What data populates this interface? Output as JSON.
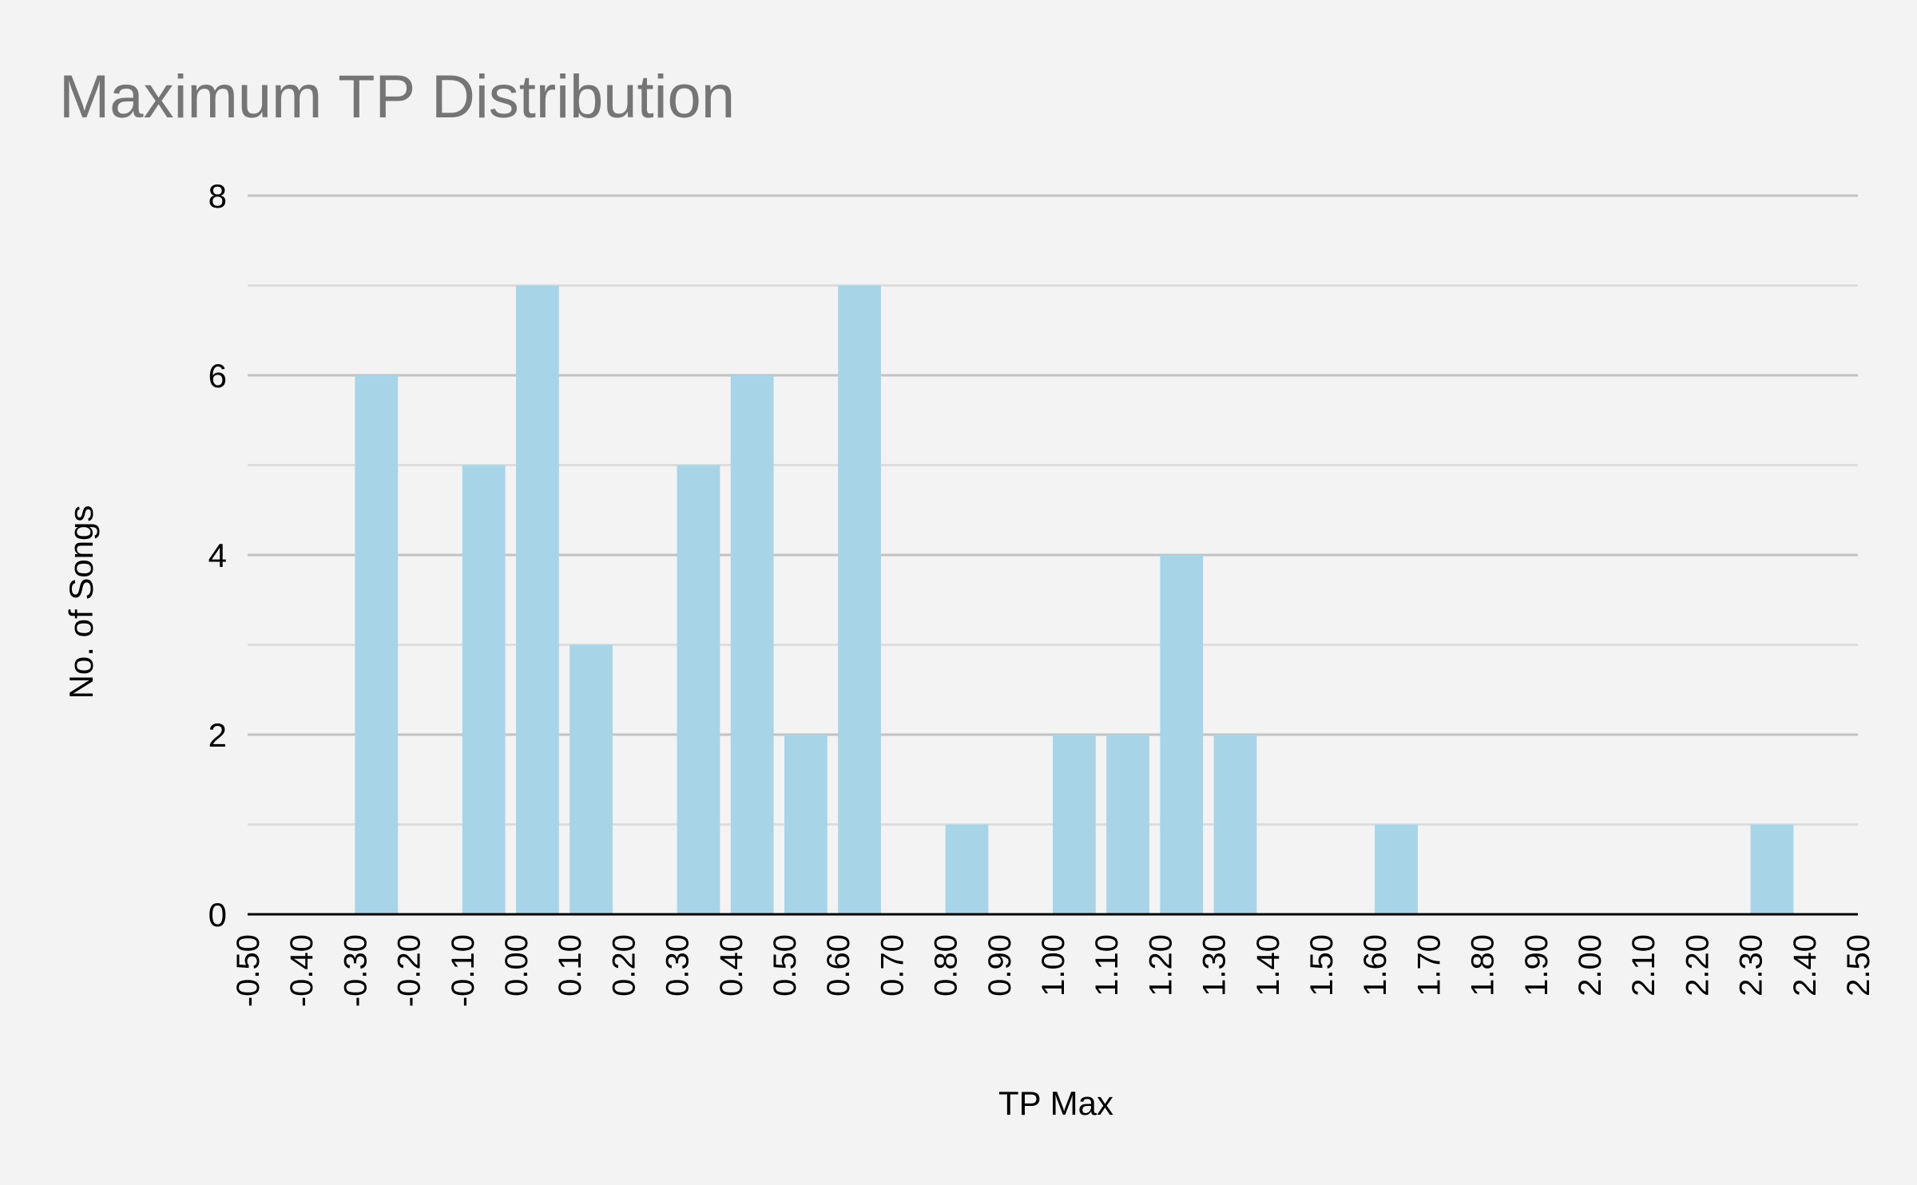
{
  "chart_data": {
    "type": "bar",
    "title": "Maximum TP Distribution",
    "xlabel": "TP Max",
    "ylabel": "No. of Songs",
    "ylim": [
      0,
      8
    ],
    "yticks": [
      0,
      2,
      4,
      6,
      8
    ],
    "xlim": [
      -0.5,
      2.5
    ],
    "xticks": [
      "-0.50",
      "-0.40",
      "-0.30",
      "-0.20",
      "-0.10",
      "0.00",
      "0.10",
      "0.20",
      "0.30",
      "0.40",
      "0.50",
      "0.60",
      "0.70",
      "0.80",
      "0.90",
      "1.00",
      "1.10",
      "1.20",
      "1.30",
      "1.40",
      "1.50",
      "1.60",
      "1.70",
      "1.80",
      "1.90",
      "2.00",
      "2.10",
      "2.20",
      "2.30",
      "2.40",
      "2.50"
    ],
    "grid": true,
    "color": "#a8d4e8",
    "bars": [
      {
        "x": -0.26,
        "value": 6
      },
      {
        "x": -0.06,
        "value": 5
      },
      {
        "x": 0.04,
        "value": 7
      },
      {
        "x": 0.14,
        "value": 3
      },
      {
        "x": 0.34,
        "value": 5
      },
      {
        "x": 0.44,
        "value": 6
      },
      {
        "x": 0.54,
        "value": 2
      },
      {
        "x": 0.64,
        "value": 7
      },
      {
        "x": 0.84,
        "value": 1
      },
      {
        "x": 1.04,
        "value": 2
      },
      {
        "x": 1.14,
        "value": 2
      },
      {
        "x": 1.24,
        "value": 4
      },
      {
        "x": 1.34,
        "value": 2
      },
      {
        "x": 1.64,
        "value": 1
      },
      {
        "x": 2.34,
        "value": 1
      }
    ]
  }
}
